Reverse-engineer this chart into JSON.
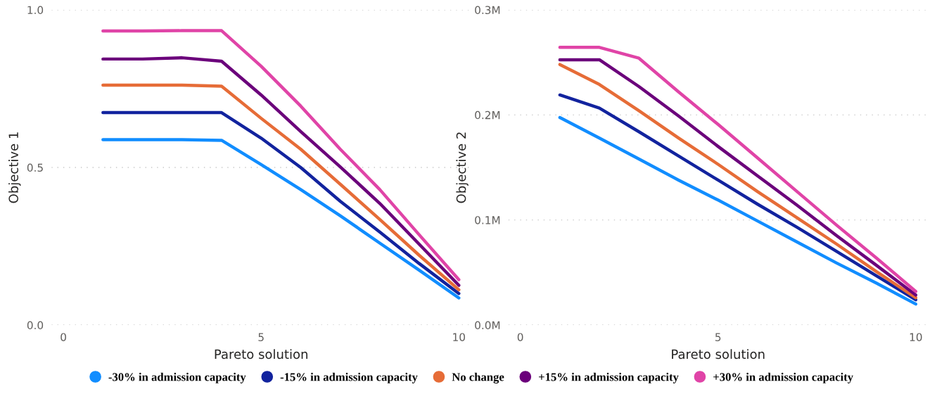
{
  "chart_data": [
    {
      "type": "line",
      "xlabel": "Pareto solution",
      "ylabel": "Objective 1",
      "x": [
        1,
        2,
        3,
        4,
        5,
        6,
        7,
        8,
        9,
        10
      ],
      "xlim": [
        -0.3,
        10.3
      ],
      "xticks": [
        0,
        5,
        10
      ],
      "ylim": [
        0,
        1.0
      ],
      "yticks": [
        {
          "value": 0,
          "label": "0.0"
        },
        {
          "value": 0.5,
          "label": "0.5"
        },
        {
          "value": 1.0,
          "label": "1.0"
        }
      ],
      "grid": "y",
      "legend": "bottom",
      "marker": "none",
      "line_style": "solid",
      "series": [
        {
          "name": "-30% in admission capacity",
          "color": "#118dff",
          "values": [
            0.588,
            0.588,
            0.588,
            0.586,
            0.509,
            0.43,
            0.347,
            0.26,
            0.174,
            0.086
          ]
        },
        {
          "name": "-15% in admission capacity",
          "color": "#12239e",
          "values": [
            0.674,
            0.674,
            0.674,
            0.674,
            0.593,
            0.5,
            0.393,
            0.295,
            0.195,
            0.1
          ]
        },
        {
          "name": "No change",
          "color": "#e66c37",
          "values": [
            0.761,
            0.761,
            0.761,
            0.758,
            0.656,
            0.558,
            0.447,
            0.335,
            0.221,
            0.112
          ]
        },
        {
          "name": "+15% in admission capacity",
          "color": "#6b007b",
          "values": [
            0.844,
            0.844,
            0.848,
            0.837,
            0.73,
            0.614,
            0.502,
            0.386,
            0.256,
            0.126
          ]
        },
        {
          "name": "+30% in admission capacity",
          "color": "#e044a7",
          "values": [
            0.933,
            0.933,
            0.934,
            0.934,
            0.821,
            0.695,
            0.558,
            0.43,
            0.286,
            0.144
          ]
        }
      ]
    },
    {
      "type": "line",
      "xlabel": "Pareto solution",
      "ylabel": "Objective 2",
      "x": [
        1,
        2,
        3,
        4,
        5,
        6,
        7,
        8,
        9,
        10
      ],
      "xlim": [
        -0.3,
        10.3
      ],
      "xticks": [
        0,
        5,
        10
      ],
      "ylim": [
        0,
        300000
      ],
      "yticks": [
        {
          "value": 0,
          "label": "0.0M"
        },
        {
          "value": 100000,
          "label": "0.1M"
        },
        {
          "value": 200000,
          "label": "0.2M"
        },
        {
          "value": 300000,
          "label": "0.3M"
        }
      ],
      "grid": "y",
      "marker": "none",
      "line_style": "solid",
      "series": [
        {
          "color": "#118dff",
          "values": [
            197500,
            178000,
            158000,
            138000,
            119000,
            99000,
            79000,
            59000,
            40000,
            20000
          ]
        },
        {
          "color": "#12239e",
          "values": [
            219000,
            206500,
            184000,
            161000,
            138000,
            115000,
            93000,
            70000,
            47000,
            24000
          ]
        },
        {
          "color": "#e66c37",
          "values": [
            248000,
            229000,
            204000,
            178000,
            153000,
            127000,
            102000,
            77000,
            51000,
            26000
          ]
        },
        {
          "color": "#6b007b",
          "values": [
            252500,
            252500,
            227000,
            199000,
            170000,
            142000,
            114000,
            85000,
            57000,
            28600
          ]
        },
        {
          "color": "#e044a7",
          "values": [
            264300,
            264300,
            254000,
            222000,
            191000,
            159000,
            127000,
            95000,
            64000,
            32000
          ]
        }
      ]
    }
  ]
}
